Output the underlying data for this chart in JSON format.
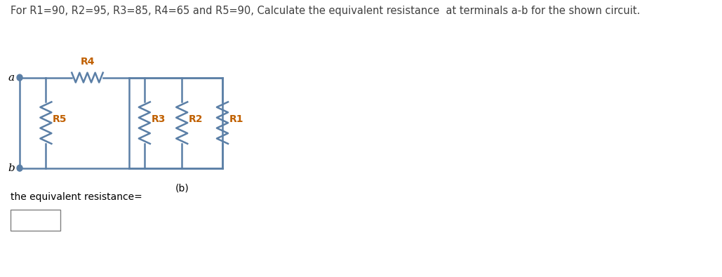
{
  "title": "For R1=90, R2=95, R3=85, R4=65 and R5=90, Calculate the equivalent resistance  at terminals a-b for the shown circuit.",
  "title_color": "#404040",
  "subtitle": "(b)",
  "label_a": "a",
  "label_b": "b",
  "resistor_labels": [
    "R4",
    "R5",
    "R3",
    "R2",
    "R1"
  ],
  "resistor_label_color": "#c06000",
  "bottom_text": "the equivalent resistance=",
  "bg_color": "#ffffff",
  "line_color": "#5b7fa6",
  "resistor_color": "#5b7fa6",
  "title_fontsize": 10.5,
  "label_fontsize": 11,
  "small_fontsize": 10
}
